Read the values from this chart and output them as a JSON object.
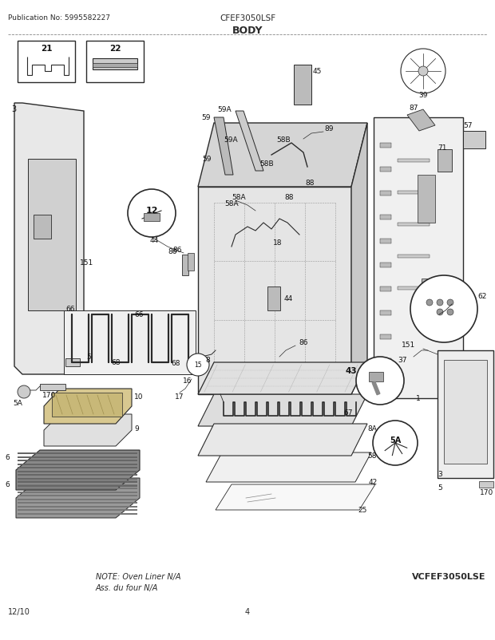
{
  "title": "BODY",
  "pub_no": "Publication No: 5995582227",
  "model_center": "CFEF3050LSF",
  "model_bottom_right": "VCFEF3050LSE",
  "date_bottom_left": "12/10",
  "page_number": "4",
  "note_line1": "NOTE: Oven Liner N/A",
  "note_line2": "Ass. du four N/A",
  "bg_color": "#ffffff",
  "gc": "#2a2a2a",
  "lc": "#777777",
  "fc_light": "#e0e0e0",
  "fc_mid": "#cccccc",
  "fc_dark": "#aaaaaa"
}
